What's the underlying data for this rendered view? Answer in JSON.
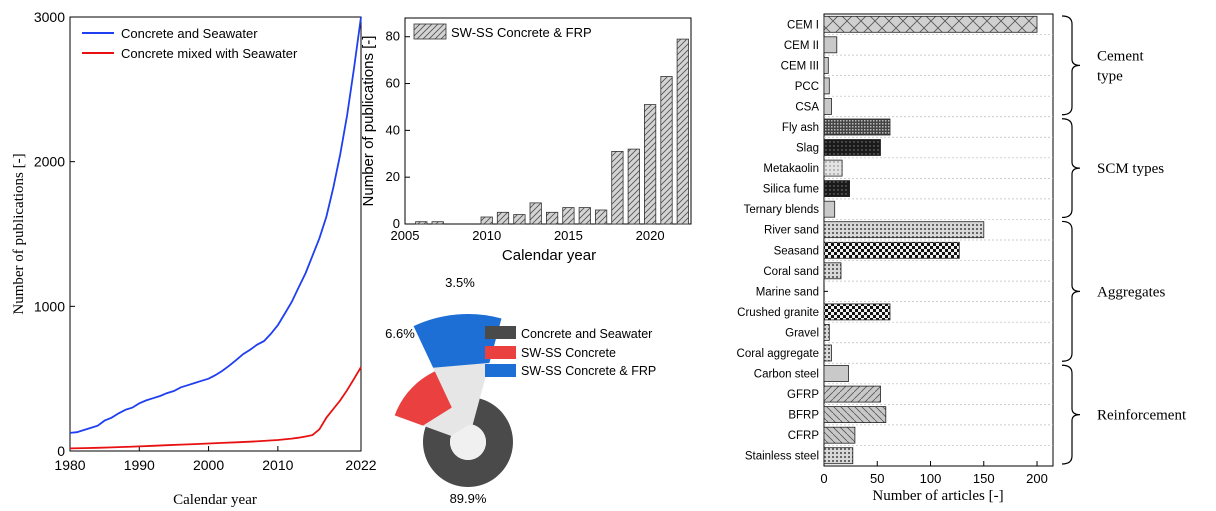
{
  "chart_data": [
    {
      "type": "line",
      "xlabel": "Calendar year",
      "ylabel": "Number of publications [-]",
      "xlim": [
        1980,
        2022
      ],
      "ylim": [
        0,
        3000
      ],
      "x_ticks": [
        "1980",
        "1990",
        "2000",
        "2010",
        "2022"
      ],
      "y_ticks": [
        "0",
        "1000",
        "2000",
        "3000"
      ],
      "legend_position": "top-left",
      "series": [
        {
          "name": "Concrete and Seawater",
          "color": "#1f3ff0",
          "x": [
            1980,
            1981,
            1982,
            1983,
            1984,
            1985,
            1986,
            1987,
            1988,
            1989,
            1990,
            1991,
            1992,
            1993,
            1994,
            1995,
            1996,
            1997,
            1998,
            1999,
            2000,
            2001,
            2002,
            2003,
            2004,
            2005,
            2006,
            2007,
            2008,
            2009,
            2010,
            2011,
            2012,
            2013,
            2014,
            2015,
            2016,
            2017,
            2018,
            2019,
            2020,
            2021,
            2022
          ],
          "values": [
            125,
            130,
            145,
            160,
            175,
            210,
            230,
            260,
            285,
            300,
            330,
            350,
            365,
            380,
            400,
            415,
            440,
            455,
            470,
            485,
            500,
            525,
            555,
            590,
            630,
            670,
            700,
            735,
            760,
            810,
            870,
            950,
            1030,
            1130,
            1230,
            1350,
            1470,
            1620,
            1820,
            2050,
            2320,
            2650,
            3000
          ]
        },
        {
          "name": "Concrete mixed with Seawater",
          "color": "#e81010",
          "x": [
            1980,
            1982,
            1984,
            1986,
            1988,
            1990,
            1992,
            1994,
            1996,
            1998,
            2000,
            2002,
            2004,
            2006,
            2008,
            2010,
            2012,
            2013,
            2014,
            2015,
            2016,
            2017,
            2018,
            2019,
            2020,
            2021,
            2022
          ],
          "values": [
            18,
            20,
            22,
            25,
            28,
            32,
            36,
            40,
            44,
            48,
            52,
            56,
            60,
            64,
            70,
            76,
            86,
            92,
            100,
            110,
            150,
            230,
            290,
            350,
            420,
            500,
            580
          ]
        }
      ]
    },
    {
      "type": "bar",
      "xlabel": "Calendar year",
      "ylabel": "Number of publications [-]",
      "xlim": [
        2005,
        2022.5
      ],
      "ylim": [
        0,
        88
      ],
      "x_ticks": [
        "2005",
        "2010",
        "2015",
        "2020"
      ],
      "y_ticks": [
        "0",
        "20",
        "40",
        "60",
        "80"
      ],
      "legend_position": "top-left",
      "series": [
        {
          "name": "SW-SS Concrete & FRP",
          "x": [
            2006,
            2007,
            2010,
            2011,
            2012,
            2013,
            2014,
            2015,
            2016,
            2017,
            2018,
            2019,
            2020,
            2021,
            2022
          ],
          "values": [
            1,
            1,
            3,
            5,
            4,
            9,
            5,
            7,
            7,
            6,
            31,
            32,
            51,
            63,
            79
          ]
        }
      ]
    },
    {
      "type": "pie",
      "labels": [
        "Concrete and Seawater",
        "SW-SS Concrete",
        "SW-SS Concrete & FRP"
      ],
      "values": [
        89.9,
        6.6,
        3.5
      ],
      "value_labels": [
        "89.9%",
        "6.6%",
        "3.5%"
      ],
      "colors": [
        "#4a4a4a",
        "#ea4040",
        "#1d6fd6"
      ],
      "legend_position": "right"
    },
    {
      "type": "bar",
      "orientation": "horizontal",
      "xlabel": "Number of articles [-]",
      "xlim": [
        0,
        215
      ],
      "x_ticks": [
        "0",
        "50",
        "100",
        "150",
        "200"
      ],
      "categories": [
        "CEM I",
        "CEM II",
        "CEM III",
        "PCC",
        "CSA",
        "Fly ash",
        "Slag",
        "Metakaolin",
        "Silica fume",
        "Ternary blends",
        "River sand",
        "Seasand",
        "Coral sand",
        "Marine sand",
        "Crushed granite",
        "Gravel",
        "Coral aggregate",
        "Carbon steel",
        "GFRP",
        "BFRP",
        "CFRP",
        "Stainless steel"
      ],
      "values": [
        200,
        12,
        4,
        5,
        7,
        62,
        53,
        17,
        24,
        10,
        150,
        127,
        16,
        0,
        62,
        5,
        7,
        23,
        53,
        58,
        29,
        27
      ],
      "groups": [
        {
          "label": "Cement\ntype",
          "categories": [
            "CEM I",
            "CEM II",
            "CEM III",
            "PCC",
            "CSA"
          ]
        },
        {
          "label": "SCM types",
          "categories": [
            "Fly ash",
            "Slag",
            "Metakaolin",
            "Silica fume",
            "Ternary blends"
          ]
        },
        {
          "label": "Aggregates",
          "categories": [
            "River sand",
            "Seasand",
            "Coral sand",
            "Marine sand",
            "Crushed granite",
            "Gravel",
            "Coral aggregate"
          ]
        },
        {
          "label": "Reinforcement",
          "categories": [
            "Carbon steel",
            "GFRP",
            "BFRP",
            "CFRP",
            "Stainless steel"
          ]
        }
      ]
    }
  ]
}
